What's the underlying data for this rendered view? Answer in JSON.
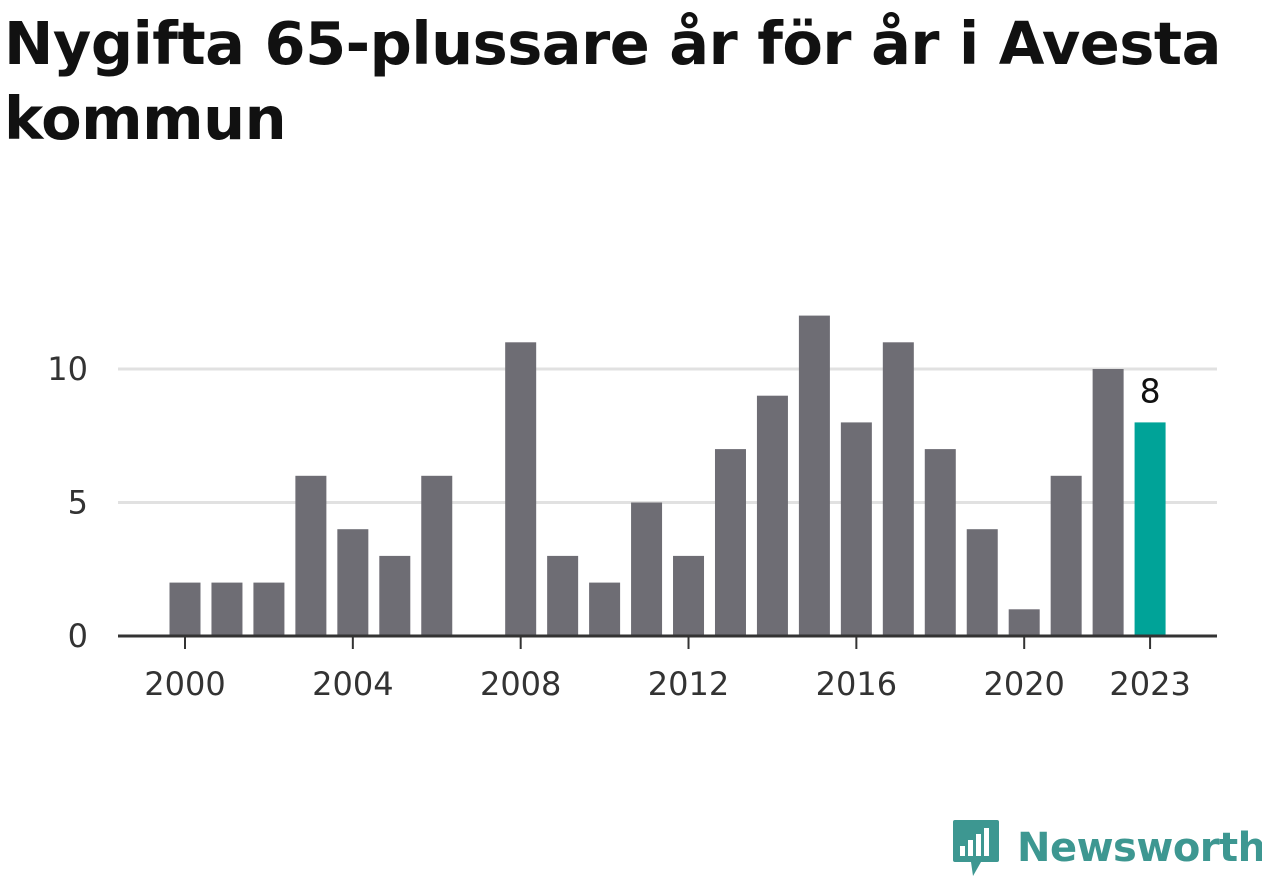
{
  "chart_data": {
    "type": "bar",
    "title": "Nygifta 65-plussare år för år i Avesta kommun",
    "xlabel": "",
    "ylabel": "",
    "x": [
      2000,
      2001,
      2002,
      2003,
      2004,
      2005,
      2006,
      2007,
      2008,
      2009,
      2010,
      2011,
      2012,
      2013,
      2014,
      2015,
      2016,
      2017,
      2018,
      2019,
      2020,
      2021,
      2022,
      2023
    ],
    "values": [
      2,
      2,
      2,
      6,
      4,
      3,
      6,
      0,
      11,
      3,
      2,
      5,
      3,
      7,
      9,
      12,
      8,
      11,
      7,
      4,
      1,
      6,
      10,
      8
    ],
    "x_ticks": [
      "2000",
      "2004",
      "2008",
      "2012",
      "2016",
      "2020",
      "2023"
    ],
    "y_ticks": [
      "0",
      "5",
      "10"
    ],
    "ylim": [
      0,
      12
    ],
    "grid": true,
    "highlight": {
      "x": 2023,
      "value_label": "8"
    },
    "colors": {
      "bar": "#6e6d74",
      "highlight": "#00a398",
      "grid": "#e1e1e1",
      "axis": "#333333"
    }
  },
  "brand": {
    "name": "Newsworthy",
    "color": "#3d9791",
    "icon": "bar-chart-speech-bubble-icon"
  }
}
